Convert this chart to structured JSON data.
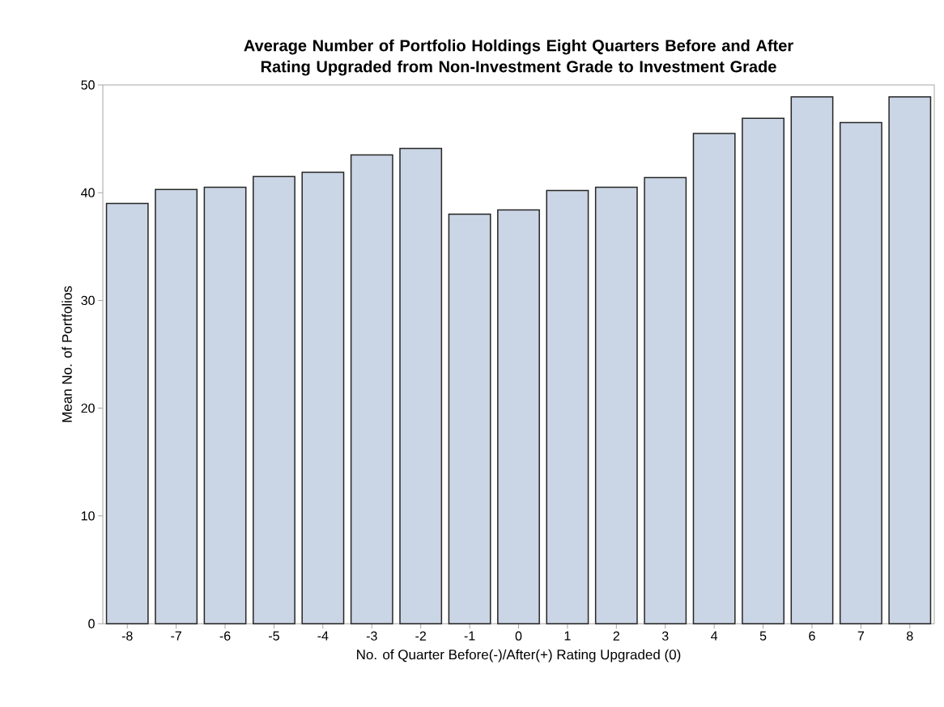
{
  "chart_data": {
    "type": "bar",
    "title": "Average Number of Portfolio Holdings Eight Quarters Before and After Rating Upgraded from Non-Investment Grade to Investment Grade",
    "xlabel": "No. of Quarter Before(-)/After(+) Rating Upgraded (0)",
    "ylabel": "Mean No. of Portfolios",
    "categories": [
      "-8",
      "-7",
      "-6",
      "-5",
      "-4",
      "-3",
      "-2",
      "-1",
      "0",
      "1",
      "2",
      "3",
      "4",
      "5",
      "6",
      "7",
      "8"
    ],
    "values": [
      39.0,
      40.3,
      40.5,
      41.5,
      41.9,
      43.5,
      44.1,
      38.0,
      38.4,
      40.2,
      40.5,
      41.4,
      45.5,
      46.9,
      48.9,
      46.5,
      48.9
    ],
    "color": "#cad5e5",
    "ylim": [
      0,
      50
    ],
    "yticks": [
      0,
      10,
      20,
      30,
      40,
      50
    ],
    "grid": false,
    "legend": false
  }
}
